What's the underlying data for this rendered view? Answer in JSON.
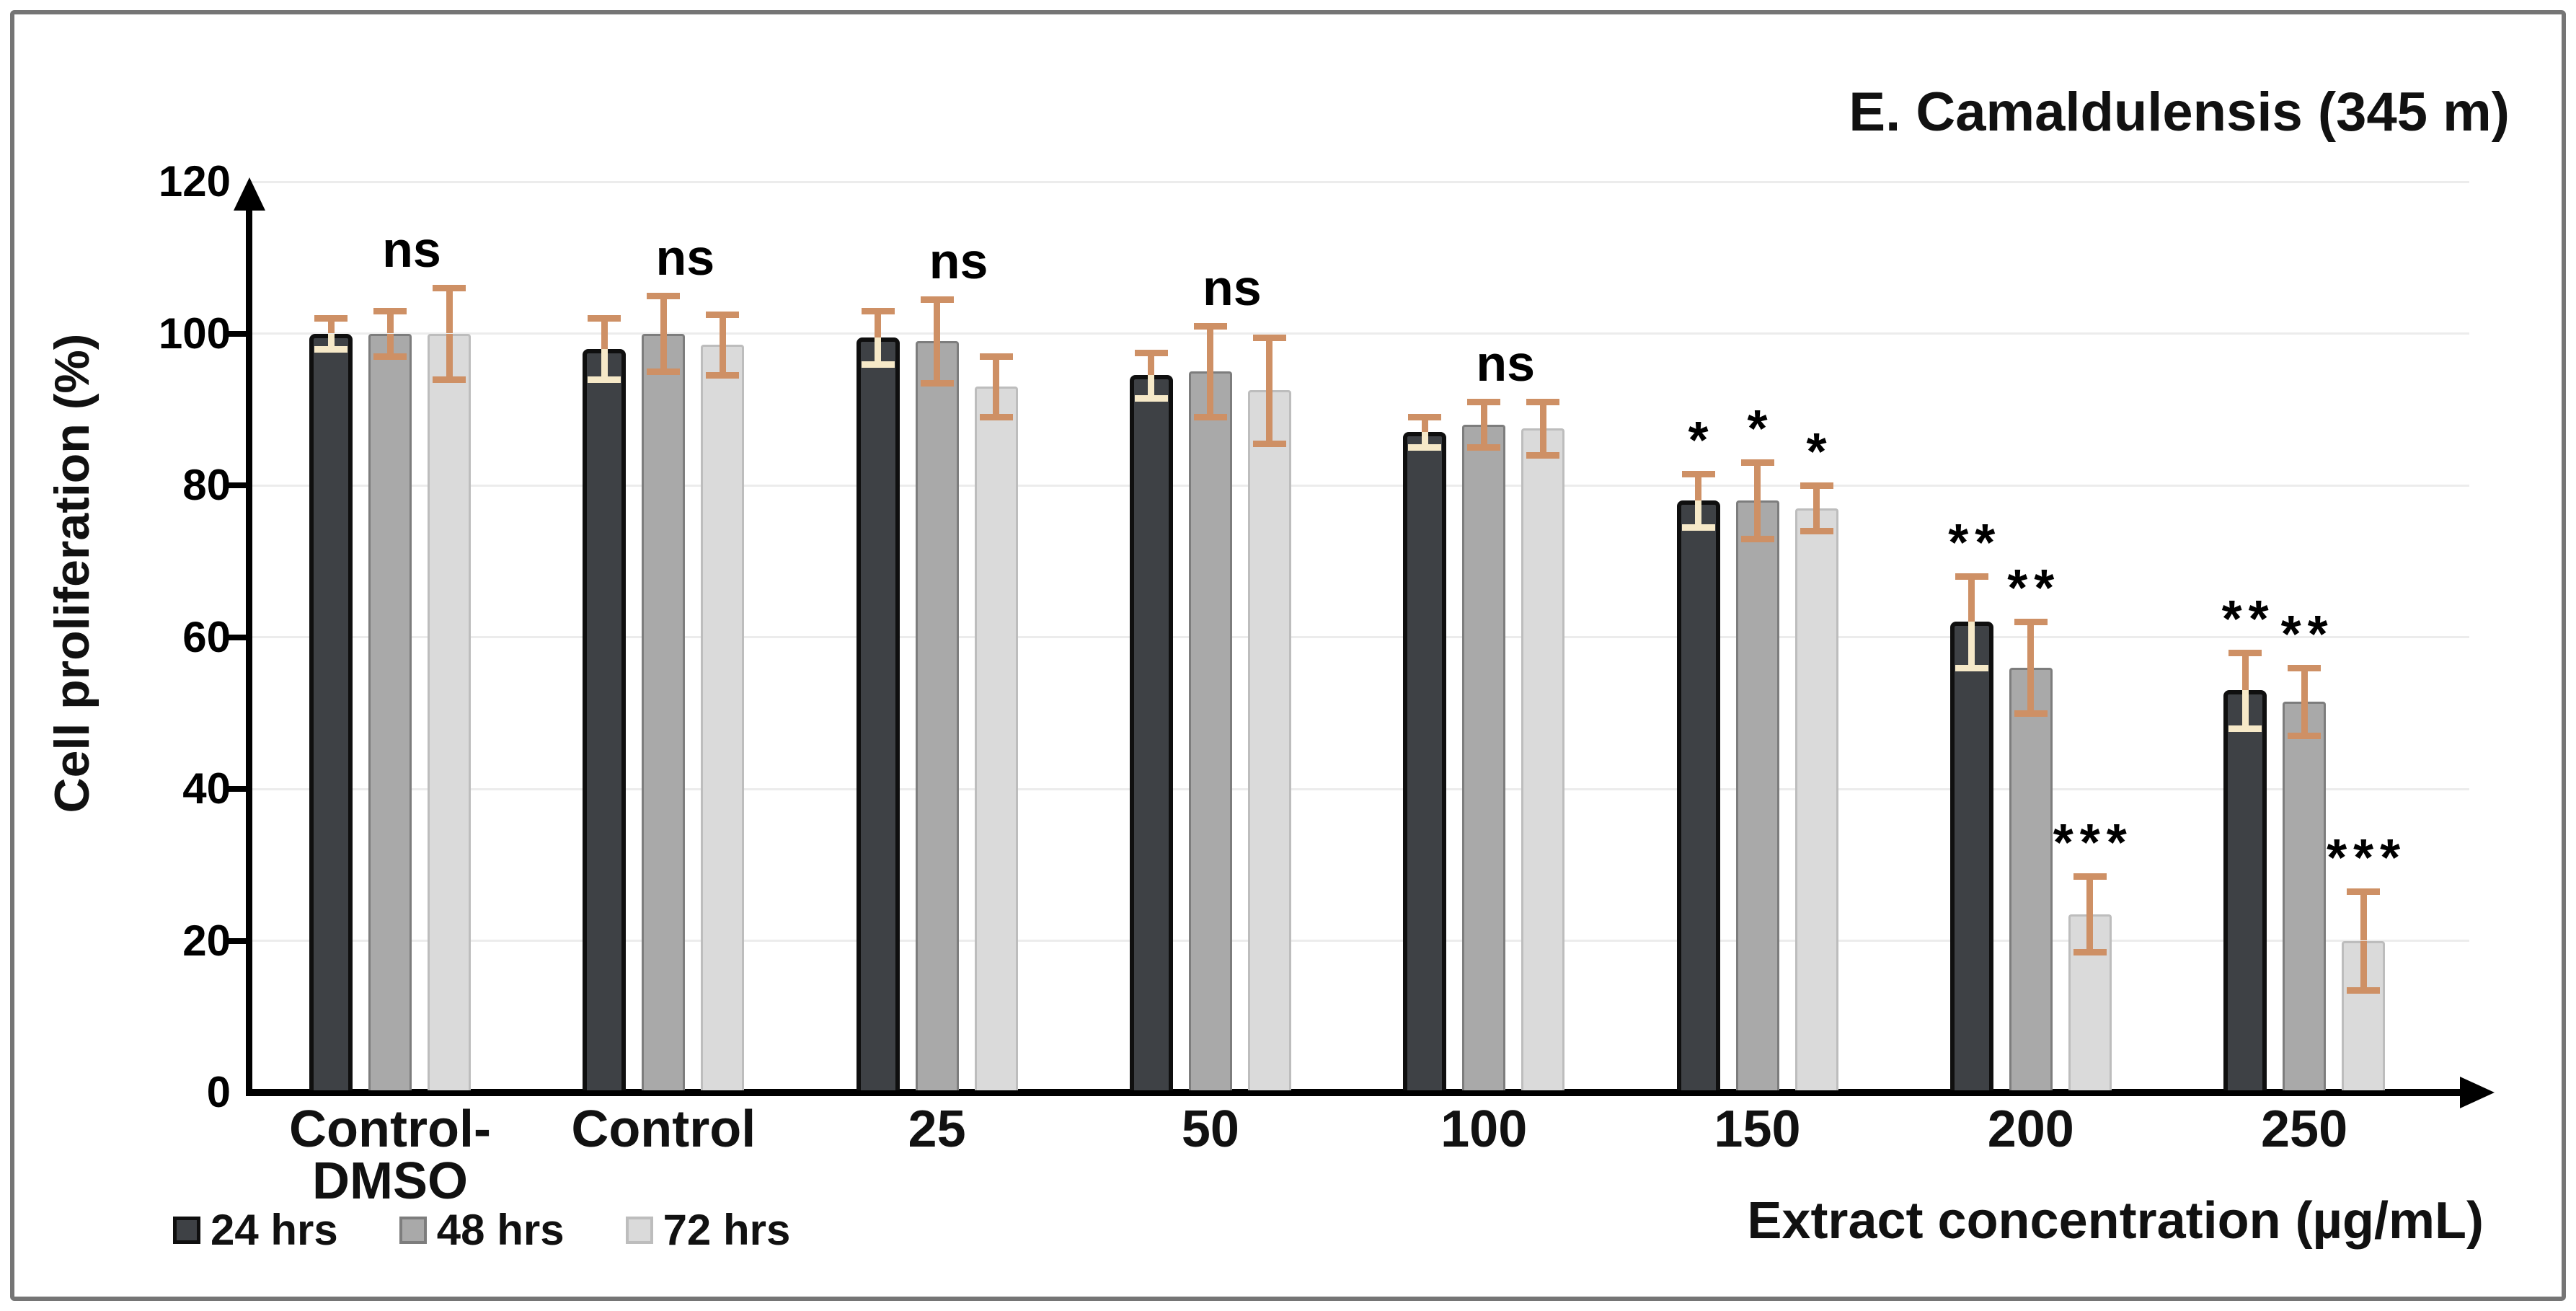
{
  "chart_data": {
    "type": "bar",
    "title": "E. Camaldulensis (345 m)",
    "xlabel": "Extract concentration (µg/mL)",
    "ylabel": "Cell proliferation (%)",
    "ylim": [
      0,
      120
    ],
    "yticks": [
      0,
      20,
      40,
      60,
      80,
      100,
      120
    ],
    "grid": true,
    "legend_position": "bottom-left",
    "categories": [
      "Control-DMSO",
      "Control",
      "25",
      "50",
      "100",
      "150",
      "200",
      "250"
    ],
    "series": [
      {
        "name": "24 hrs",
        "color": "#3e4145",
        "border_color": "#0f0f0f",
        "values": [
          100,
          98,
          99.5,
          94.5,
          87,
          78,
          62,
          53
        ],
        "errors": [
          2,
          4,
          3.5,
          3,
          2,
          3.5,
          6,
          5
        ]
      },
      {
        "name": "48 hrs",
        "color": "#a9a9a9",
        "border_color": "#7d7d7d",
        "values": [
          100,
          100,
          99,
          95,
          88,
          78,
          56,
          51.5
        ],
        "errors": [
          3,
          5,
          5.5,
          6,
          3,
          5,
          6,
          4.5
        ]
      },
      {
        "name": "72 hrs",
        "color": "#dadada",
        "border_color": "#bdbdbd",
        "values": [
          100,
          98.5,
          93,
          92.5,
          87.5,
          77,
          23.5,
          20
        ],
        "errors": [
          6,
          4,
          4,
          7,
          3.5,
          3,
          5,
          6.5
        ]
      }
    ],
    "error_bar_color": "#ce9065",
    "error_bar_color_on_dark_bars": "#f6e9c8",
    "group_significance": [
      "ns",
      "ns",
      "ns",
      "ns",
      "ns",
      null,
      null,
      null
    ],
    "bar_significance": [
      null,
      null,
      null,
      null,
      null,
      [
        "*",
        "*",
        "*"
      ],
      [
        "**",
        "**",
        "***"
      ],
      [
        "**",
        "**",
        "***"
      ]
    ]
  }
}
